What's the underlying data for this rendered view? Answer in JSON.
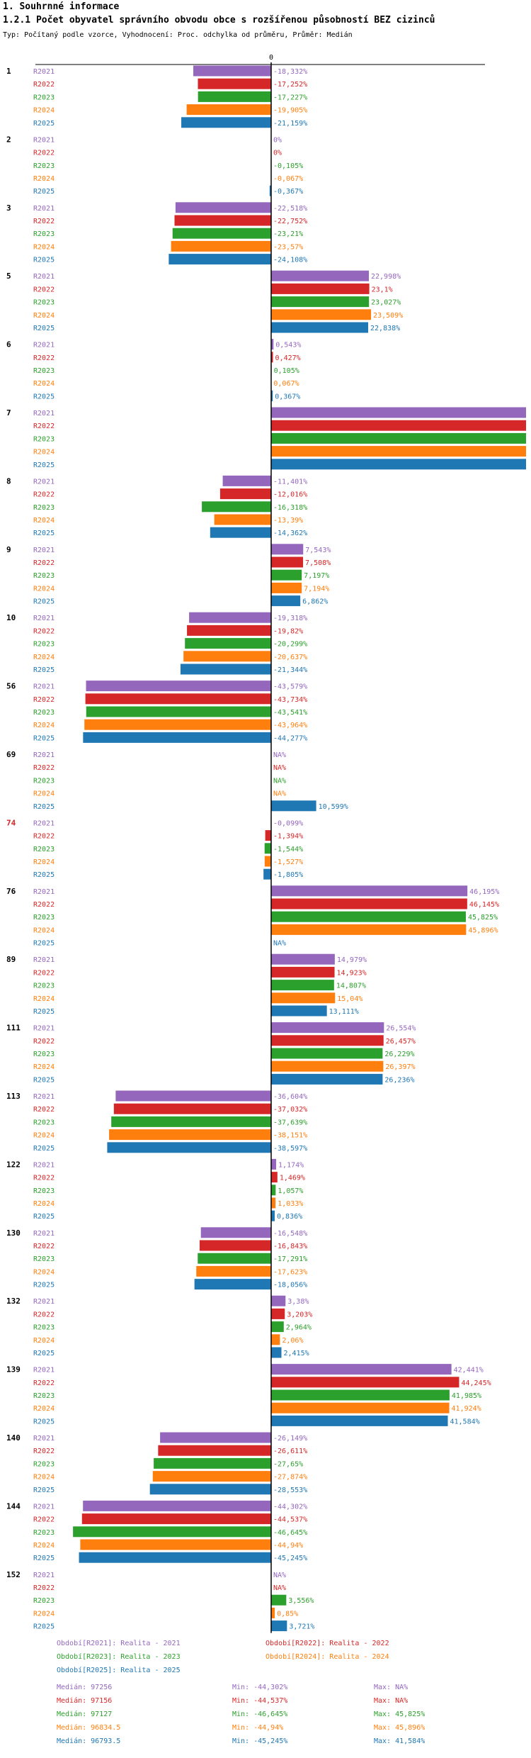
{
  "header": {
    "section": "1. Souhrnné informace",
    "title": "1.2.1 Počet obyvatel správního obvodu obce s rozšířenou působností BEZ cizinců",
    "subtitle": "Typ: Počítaný podle vzorce, Vyhodnocení: Proc. odchylka od průměru, Průměr: Medián"
  },
  "chart_data": {
    "type": "bar",
    "orientation": "horizontal",
    "zero_label": "0",
    "series_names": [
      "R2021",
      "R2022",
      "R2023",
      "R2024",
      "R2025"
    ],
    "colors": [
      "#9467bd",
      "#d62728",
      "#2ca02c",
      "#ff7f0e",
      "#1f77b4"
    ],
    "xlim": [
      -50,
      50
    ],
    "groups": [
      {
        "label": "1",
        "highlight": false,
        "values": [
          -18.332,
          -17.252,
          -17.227,
          -19.905,
          -21.159
        ],
        "labels": [
          "-18,332%",
          "-17,252%",
          "-17,227%",
          "-19,905%",
          "-21,159%"
        ]
      },
      {
        "label": "2",
        "highlight": false,
        "values": [
          0,
          0,
          -0.105,
          -0.067,
          -0.367
        ],
        "labels": [
          "0%",
          "0%",
          "-0,105%",
          "-0,067%",
          "-0,367%"
        ]
      },
      {
        "label": "3",
        "highlight": false,
        "values": [
          -22.518,
          -22.752,
          -23.21,
          -23.57,
          -24.108
        ],
        "labels": [
          "-22,518%",
          "-22,752%",
          "-23,21%",
          "-23,57%",
          "-24,108%"
        ]
      },
      {
        "label": "5",
        "highlight": false,
        "values": [
          22.998,
          23.1,
          23.027,
          23.509,
          22.838
        ],
        "labels": [
          "22,998%",
          "23,1%",
          "23,027%",
          "23,509%",
          "22,838%"
        ]
      },
      {
        "label": "6",
        "highlight": false,
        "values": [
          0.543,
          0.427,
          0.105,
          0.067,
          0.367
        ],
        "labels": [
          "0,543%",
          "0,427%",
          "0,105%",
          "0,067%",
          "0,367%"
        ]
      },
      {
        "label": "7",
        "highlight": false,
        "values": [
          60,
          60,
          60,
          60,
          60
        ],
        "labels": [
          "",
          "",
          "",
          "",
          ""
        ]
      },
      {
        "label": "8",
        "highlight": false,
        "values": [
          -11.401,
          -12.016,
          -16.318,
          -13.39,
          -14.362
        ],
        "labels": [
          "-11,401%",
          "-12,016%",
          "-16,318%",
          "-13,39%",
          "-14,362%"
        ]
      },
      {
        "label": "9",
        "highlight": false,
        "values": [
          7.543,
          7.508,
          7.197,
          7.194,
          6.862
        ],
        "labels": [
          "7,543%",
          "7,508%",
          "7,197%",
          "7,194%",
          "6,862%"
        ]
      },
      {
        "label": "10",
        "highlight": false,
        "values": [
          -19.318,
          -19.82,
          -20.299,
          -20.637,
          -21.344
        ],
        "labels": [
          "-19,318%",
          "-19,82%",
          "-20,299%",
          "-20,637%",
          "-21,344%"
        ]
      },
      {
        "label": "56",
        "highlight": false,
        "values": [
          -43.579,
          -43.734,
          -43.541,
          -43.964,
          -44.277
        ],
        "labels": [
          "-43,579%",
          "-43,734%",
          "-43,541%",
          "-43,964%",
          "-44,277%"
        ]
      },
      {
        "label": "69",
        "highlight": false,
        "values": [
          null,
          null,
          null,
          null,
          10.599
        ],
        "labels": [
          "NA%",
          "NA%",
          "NA%",
          "NA%",
          "10,599%"
        ]
      },
      {
        "label": "74",
        "highlight": true,
        "values": [
          -0.099,
          -1.394,
          -1.544,
          -1.527,
          -1.805
        ],
        "labels": [
          "-0,099%",
          "-1,394%",
          "-1,544%",
          "-1,527%",
          "-1,805%"
        ]
      },
      {
        "label": "76",
        "highlight": false,
        "values": [
          46.195,
          46.145,
          45.825,
          45.896,
          null
        ],
        "labels": [
          "46,195%",
          "46,145%",
          "45,825%",
          "45,896%",
          "NA%"
        ]
      },
      {
        "label": "89",
        "highlight": false,
        "values": [
          14.979,
          14.923,
          14.807,
          15.04,
          13.111
        ],
        "labels": [
          "14,979%",
          "14,923%",
          "14,807%",
          "15,04%",
          "13,111%"
        ]
      },
      {
        "label": "111",
        "highlight": false,
        "values": [
          26.554,
          26.457,
          26.229,
          26.397,
          26.236
        ],
        "labels": [
          "26,554%",
          "26,457%",
          "26,229%",
          "26,397%",
          "26,236%"
        ]
      },
      {
        "label": "113",
        "highlight": false,
        "values": [
          -36.604,
          -37.032,
          -37.639,
          -38.151,
          -38.597
        ],
        "labels": [
          "-36,604%",
          "-37,032%",
          "-37,639%",
          "-38,151%",
          "-38,597%"
        ]
      },
      {
        "label": "122",
        "highlight": false,
        "values": [
          1.174,
          1.469,
          1.057,
          1.033,
          0.836
        ],
        "labels": [
          "1,174%",
          "1,469%",
          "1,057%",
          "1,033%",
          "0,836%"
        ]
      },
      {
        "label": "130",
        "highlight": false,
        "values": [
          -16.548,
          -16.843,
          -17.291,
          -17.623,
          -18.056
        ],
        "labels": [
          "-16,548%",
          "-16,843%",
          "-17,291%",
          "-17,623%",
          "-18,056%"
        ]
      },
      {
        "label": "132",
        "highlight": false,
        "values": [
          3.38,
          3.203,
          2.964,
          2.06,
          2.415
        ],
        "labels": [
          "3,38%",
          "3,203%",
          "2,964%",
          "2,06%",
          "2,415%"
        ]
      },
      {
        "label": "139",
        "highlight": false,
        "values": [
          42.441,
          44.245,
          41.985,
          41.924,
          41.584
        ],
        "labels": [
          "42,441%",
          "44,245%",
          "41,985%",
          "41,924%",
          "41,584%"
        ]
      },
      {
        "label": "140",
        "highlight": false,
        "values": [
          -26.149,
          -26.611,
          -27.65,
          -27.874,
          -28.553
        ],
        "labels": [
          "-26,149%",
          "-26,611%",
          "-27,65%",
          "-27,874%",
          "-28,553%"
        ]
      },
      {
        "label": "144",
        "highlight": false,
        "values": [
          -44.302,
          -44.537,
          -46.645,
          -44.94,
          -45.245
        ],
        "labels": [
          "-44,302%",
          "-44,537%",
          "-46,645%",
          "-44,94%",
          "-45,245%"
        ]
      },
      {
        "label": "152",
        "highlight": false,
        "values": [
          null,
          null,
          3.556,
          0.85,
          3.721
        ],
        "labels": [
          "NA%",
          "NA%",
          "3,556%",
          "0,85%",
          "3,721%"
        ]
      }
    ]
  },
  "legend": [
    "Období[R2021]: Realita - 2021",
    "Období[R2022]: Realita - 2022",
    "Období[R2023]: Realita - 2023",
    "Období[R2024]: Realita - 2024",
    "Období[R2025]: Realita - 2025"
  ],
  "stats": [
    {
      "median": "Medián: 97256",
      "min": "Min: -44,302%",
      "max": "Max: NA%"
    },
    {
      "median": "Medián: 97156",
      "min": "Min: -44,537%",
      "max": "Max: NA%"
    },
    {
      "median": "Medián: 97127",
      "min": "Min: -46,645%",
      "max": "Max: 45,825%"
    },
    {
      "median": "Medián: 96834.5",
      "min": "Min: -44,94%",
      "max": "Max: 45,896%"
    },
    {
      "median": "Medián: 96793.5",
      "min": "Min: -45,245%",
      "max": "Max: 41,584%"
    }
  ]
}
